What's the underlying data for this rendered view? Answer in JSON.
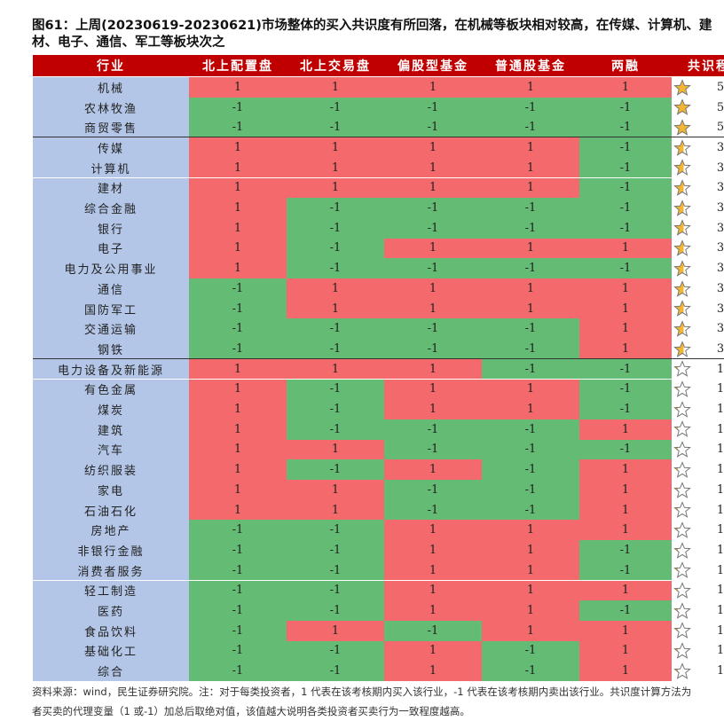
{
  "title": [
    "图61：上周(20230619-20230621)市场整体的买入共识度有所回落，在机械等板块相对较高，在传媒、计算机、建",
    "材、电子、通信、军工等板块次之"
  ],
  "table": {
    "header": [
      "行业",
      "北上配置盘",
      "北上交易盘",
      "偏股型基金",
      "普通股基金",
      "两融",
      "共识程度"
    ],
    "buy_color": "#f4696b",
    "sell_color": "#63bb74",
    "industry_color": "#b4c6e7",
    "star_color": "#f2b632",
    "rows": [
      {
        "industry": "机械",
        "values": [
          1,
          1,
          1,
          1,
          1
        ],
        "consensus": 5
      },
      {
        "industry": "农林牧渔",
        "values": [
          -1,
          -1,
          -1,
          -1,
          -1
        ],
        "consensus": 5
      },
      {
        "industry": "商贸零售",
        "values": [
          -1,
          -1,
          -1,
          -1,
          -1
        ],
        "consensus": 5
      },
      {
        "industry": "传媒",
        "values": [
          1,
          1,
          1,
          1,
          -1
        ],
        "consensus": 3
      },
      {
        "industry": "计算机",
        "values": [
          1,
          1,
          1,
          1,
          -1
        ],
        "consensus": 3
      },
      {
        "industry": "建材",
        "values": [
          1,
          1,
          1,
          1,
          -1
        ],
        "consensus": 3
      },
      {
        "industry": "综合金融",
        "values": [
          1,
          -1,
          -1,
          -1,
          -1
        ],
        "consensus": 3
      },
      {
        "industry": "银行",
        "values": [
          1,
          -1,
          -1,
          -1,
          -1
        ],
        "consensus": 3
      },
      {
        "industry": "电子",
        "values": [
          1,
          -1,
          1,
          1,
          1
        ],
        "consensus": 3
      },
      {
        "industry": "电力及公用事业",
        "values": [
          1,
          -1,
          -1,
          -1,
          -1
        ],
        "consensus": 3
      },
      {
        "industry": "通信",
        "values": [
          -1,
          1,
          1,
          1,
          1
        ],
        "consensus": 3
      },
      {
        "industry": "国防军工",
        "values": [
          -1,
          1,
          1,
          1,
          1
        ],
        "consensus": 3
      },
      {
        "industry": "交通运输",
        "values": [
          -1,
          -1,
          -1,
          -1,
          1
        ],
        "consensus": 3
      },
      {
        "industry": "钢铁",
        "values": [
          -1,
          -1,
          -1,
          -1,
          1
        ],
        "consensus": 3
      },
      {
        "industry": "电力设备及新能源",
        "values": [
          1,
          1,
          1,
          -1,
          -1
        ],
        "consensus": 1
      },
      {
        "industry": "有色金属",
        "values": [
          1,
          -1,
          1,
          1,
          -1
        ],
        "consensus": 1
      },
      {
        "industry": "煤炭",
        "values": [
          1,
          -1,
          1,
          1,
          -1
        ],
        "consensus": 1
      },
      {
        "industry": "建筑",
        "values": [
          1,
          -1,
          -1,
          -1,
          1
        ],
        "consensus": 1
      },
      {
        "industry": "汽车",
        "values": [
          1,
          1,
          -1,
          -1,
          -1
        ],
        "consensus": 1
      },
      {
        "industry": "纺织服装",
        "values": [
          1,
          -1,
          1,
          -1,
          1
        ],
        "consensus": 1
      },
      {
        "industry": "家电",
        "values": [
          1,
          1,
          -1,
          -1,
          1
        ],
        "consensus": 1
      },
      {
        "industry": "石油石化",
        "values": [
          1,
          1,
          -1,
          -1,
          1
        ],
        "consensus": 1
      },
      {
        "industry": "房地产",
        "values": [
          -1,
          -1,
          1,
          1,
          1
        ],
        "consensus": 1
      },
      {
        "industry": "非银行金融",
        "values": [
          -1,
          -1,
          1,
          1,
          -1
        ],
        "consensus": 1
      },
      {
        "industry": "消费者服务",
        "values": [
          -1,
          -1,
          1,
          1,
          -1
        ],
        "consensus": 1
      },
      {
        "industry": "轻工制造",
        "values": [
          -1,
          -1,
          1,
          1,
          1
        ],
        "consensus": 1
      },
      {
        "industry": "医药",
        "values": [
          -1,
          -1,
          1,
          1,
          -1
        ],
        "consensus": 1
      },
      {
        "industry": "食品饮料",
        "values": [
          -1,
          1,
          -1,
          1,
          1
        ],
        "consensus": 1
      },
      {
        "industry": "基础化工",
        "values": [
          -1,
          -1,
          1,
          -1,
          1
        ],
        "consensus": 1
      },
      {
        "industry": "综合",
        "values": [
          -1,
          -1,
          1,
          -1,
          1
        ],
        "consensus": 1
      }
    ]
  },
  "footnote": [
    "资料来源：wind，民生证券研究院。注：对于每类投资者，1 代表在该考核期内买入该行业，-1 代表在该考核期内卖出该行业。共识度计算方法为",
    "者买卖的代理变量（1 或-1）加总后取绝对值，该值越大说明各类投资者买卖行为一致程度越高。"
  ]
}
